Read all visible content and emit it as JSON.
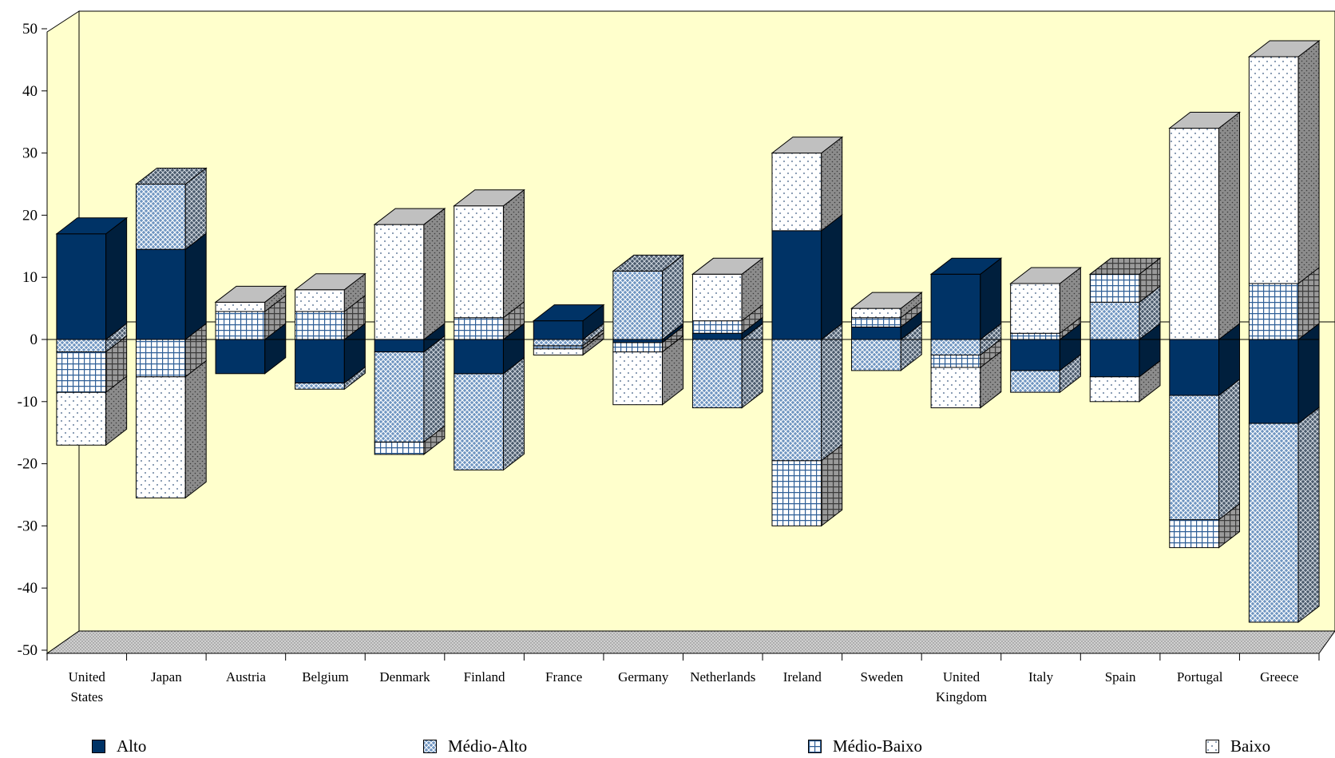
{
  "chart_data": {
    "type": "bar",
    "subtype": "stacked-3d",
    "title": "",
    "xlabel": "",
    "ylabel": "",
    "ylim": [
      -50,
      50
    ],
    "yticks": [
      50,
      40,
      30,
      20,
      10,
      0,
      -10,
      -20,
      -30,
      -40,
      -50
    ],
    "grid": false,
    "legend_position": "bottom",
    "categories": [
      [
        "United",
        "States"
      ],
      [
        "Japan"
      ],
      [
        "Austria"
      ],
      [
        "Belgium"
      ],
      [
        "Denmark"
      ],
      [
        "Finland"
      ],
      [
        "France"
      ],
      [
        "Germany"
      ],
      [
        "Netherlands"
      ],
      [
        "Ireland"
      ],
      [
        "Sweden"
      ],
      [
        "United",
        "Kingdom"
      ],
      [
        "Italy"
      ],
      [
        "Spain"
      ],
      [
        "Portugal"
      ],
      [
        "Greece"
      ]
    ],
    "series": [
      {
        "name": "Alto",
        "pattern": "solid",
        "values": [
          17,
          14.5,
          -5.5,
          -7,
          -2,
          -5.5,
          3,
          -0.5,
          1,
          17.5,
          2,
          10.5,
          -5,
          -6,
          -9,
          -13.5
        ]
      },
      {
        "name": "Médio-Alto",
        "pattern": "crosshatch",
        "values": [
          -2,
          10.5,
          0,
          -1,
          -14.5,
          -15.5,
          -1,
          11,
          -11,
          -19.5,
          -5,
          -2.5,
          -3.5,
          6,
          -20,
          -32
        ]
      },
      {
        "name": "Médio-Baixo",
        "pattern": "grid",
        "values": [
          -6.5,
          -6,
          4.5,
          4.5,
          -2,
          3.5,
          -0.5,
          -1.5,
          2,
          -10.5,
          1.5,
          -2,
          1,
          4.5,
          -4.5,
          9
        ]
      },
      {
        "name": "Baixo",
        "pattern": "dots",
        "values": [
          -8.5,
          -19.5,
          1.5,
          3.5,
          18.5,
          18,
          -1,
          -8.5,
          7.5,
          12.5,
          1.5,
          -6.5,
          8,
          -4,
          34,
          36.5
        ]
      }
    ],
    "colors": {
      "wall": "#ffffcc",
      "floor": "#c8c8c8",
      "alto": "#003366",
      "alto_dark": "#001f3d",
      "medio_bg": "#6f95c1",
      "pattern_line": "#ffffff",
      "side": "#8c8c8c",
      "top": "#c0c0c0"
    }
  }
}
